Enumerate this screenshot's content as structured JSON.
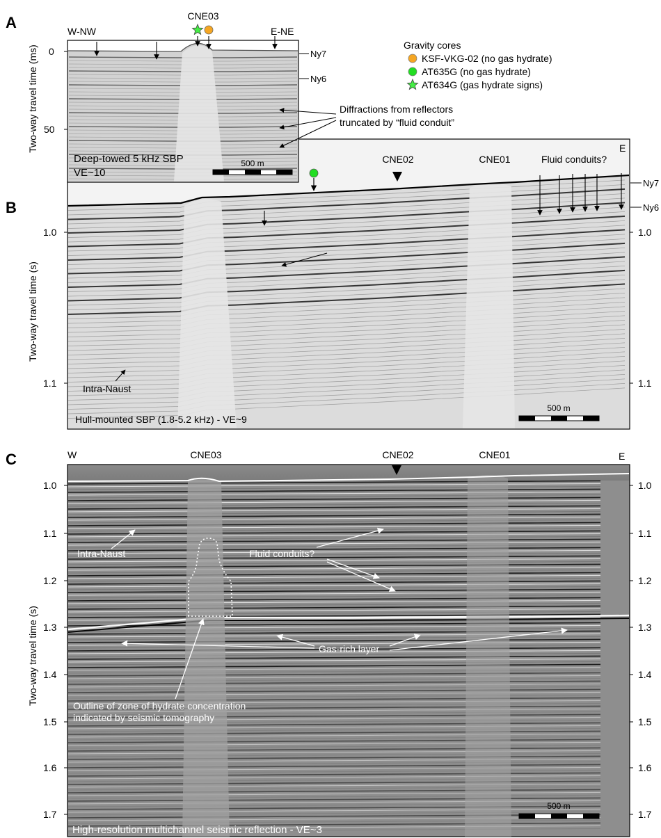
{
  "panel_a": {
    "letter": "A",
    "left_label": "W-NW",
    "right_label": "E-NE",
    "site_label": "CNE03",
    "y_axis_title": "Two-way travel time (ms)",
    "y_ticks": [
      "0",
      "50"
    ],
    "horizon_ny7": "Ny7",
    "horizon_ny6": "Ny6",
    "caption_line1": "Deep-towed 5 kHz SBP",
    "caption_line2": "VE~10",
    "scale_label": "500 m",
    "annotation_line1": "Diffractions from reflectors",
    "annotation_line2": "truncated by “fluid conduit”"
  },
  "legend": {
    "title": "Gravity cores",
    "items": [
      {
        "label": "KSF-VKG-02 (no gas hydrate)",
        "color": "#f5a623",
        "marker": "circle"
      },
      {
        "label": "AT635G (no gas hydrate)",
        "color": "#22dd22",
        "marker": "circle"
      },
      {
        "label": "AT634G (gas hydrate signs)",
        "color": "#44ee44",
        "marker": "star"
      }
    ]
  },
  "panel_b": {
    "letter": "B",
    "right_label": "E",
    "site_cne02": "CNE02",
    "site_cne01": "CNE01",
    "fluid_label": "Fluid conduits?",
    "horizon_ny7": "Ny7",
    "horizon_ny6": "Ny6",
    "y_axis_title": "Two-way travel time (s)",
    "y_ticks": [
      "1.0",
      "1.1"
    ],
    "intra_label": "Intra-Naust",
    "caption": "Hull-mounted SBP (1.8-5.2 kHz) - VE~9",
    "scale_label": "500 m"
  },
  "panel_c": {
    "letter": "C",
    "left_label": "W",
    "right_label": "E",
    "site_cne03": "CNE03",
    "site_cne02": "CNE02",
    "site_cne01": "CNE01",
    "y_axis_title": "Two-way travel time (s)",
    "y_ticks": [
      "1.0",
      "1.1",
      "1.2",
      "1.3",
      "1.4",
      "1.5",
      "1.6",
      "1.7"
    ],
    "intra_label": "Intra-Naust",
    "fluid_label": "Fluid conduits?",
    "gas_label": "Gas-rich layer",
    "outline_line1": "Outline of zone of hydrate concentration",
    "outline_line2": "indicated by seismic tomography",
    "caption": "High-resolution multichannel seismic reflection - VE~3",
    "scale_label": "500 m"
  },
  "colors": {
    "orange_core": "#f5a623",
    "green_core": "#22dd22",
    "star_core": "#44ee44"
  }
}
